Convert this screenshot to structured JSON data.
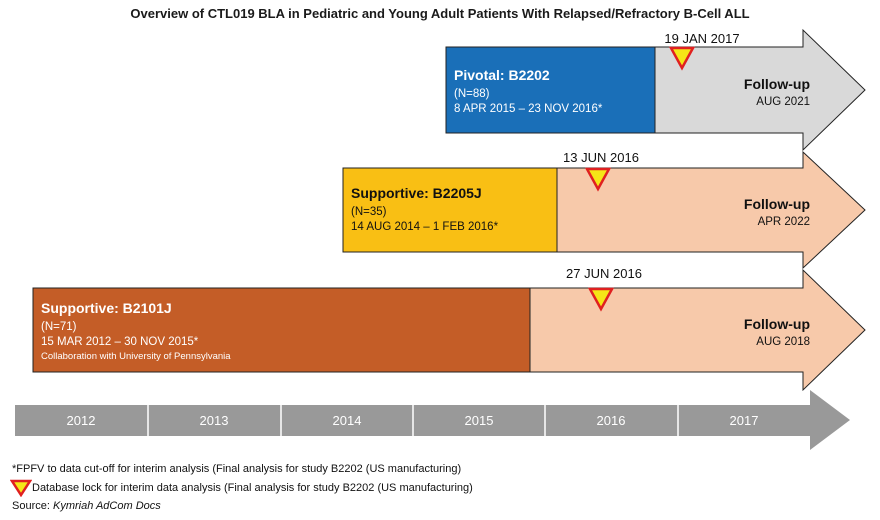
{
  "title": "Overview of CTL019 BLA in Pediatric and Young Adult Patients With Relapsed/Refractory B-Cell ALL",
  "colors": {
    "pivotal": "#1a6fb8",
    "supportive_b2205j": "#f9bf14",
    "supportive_b2101j": "#c45d27",
    "followup_gray": "#d9d9d9",
    "followup_peach": "#f7c9aa",
    "marker_fill": "#f5e617",
    "marker_stroke": "#e02020",
    "timeline": "#999999"
  },
  "studies": [
    {
      "name": "Pivotal: B2202",
      "n": "(N=88)",
      "dates": "8 APR 2015 – 23 NOV 2016*",
      "note": "",
      "lock_date": "19 JAN 2017",
      "followup_label": "Follow-up",
      "followup_date": "AUG 2021"
    },
    {
      "name": "Supportive: B2205J",
      "n": "(N=35)",
      "dates": "14 AUG 2014 – 1 FEB 2016*",
      "note": "",
      "lock_date": "13 JUN 2016",
      "followup_label": "Follow-up",
      "followup_date": "APR 2022"
    },
    {
      "name": "Supportive: B2101J",
      "n": "(N=71)",
      "dates": "15 MAR 2012 – 30 NOV 2015*",
      "note": "Collaboration with University of Pennsylvania",
      "lock_date": "27 JUN 2016",
      "followup_label": "Follow-up",
      "followup_date": "AUG 2018"
    }
  ],
  "timeline_years": [
    "2012",
    "2013",
    "2014",
    "2015",
    "2016",
    "2017"
  ],
  "footnotes": {
    "asterisk": "*FPFV to data cut-off for interim analysis (Final analysis for study B2202 (US manufacturing)",
    "lock_legend": "Database lock for interim data analysis (Final analysis for study B2202 (US manufacturing)",
    "source_prefix": "Source:",
    "source_text": "Kymriah AdCom Docs"
  }
}
